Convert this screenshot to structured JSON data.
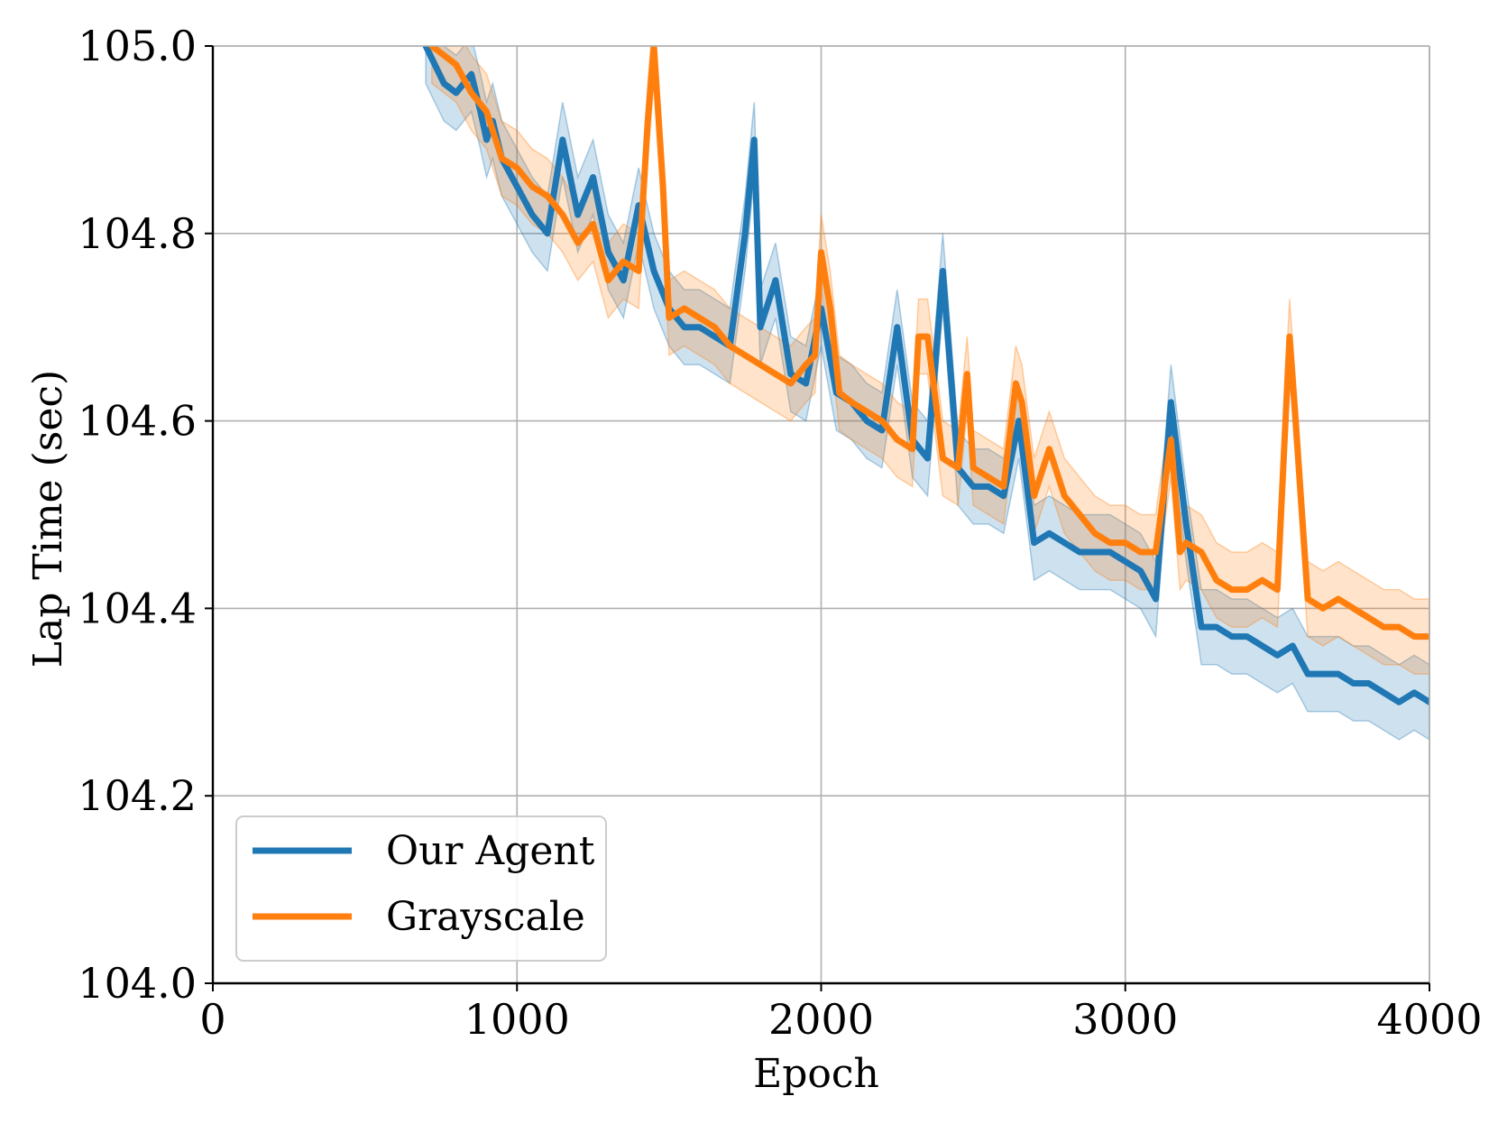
{
  "chart_data": {
    "type": "line",
    "title": "",
    "xlabel": "Epoch",
    "ylabel": "Lap Time (sec)",
    "xlim": [
      0,
      4000
    ],
    "ylim": [
      104.0,
      105.0
    ],
    "xticks": [
      0,
      1000,
      2000,
      3000,
      4000
    ],
    "xtick_labels": [
      "0",
      "1000",
      "2000",
      "3000",
      "4000"
    ],
    "yticks": [
      104.0,
      104.2,
      104.4,
      104.6,
      104.8,
      105.0
    ],
    "ytick_labels": [
      "104.0",
      "104.2",
      "104.4",
      "104.6",
      "104.8",
      "105.0"
    ],
    "grid": true,
    "legend_position": "bottom-left",
    "series": [
      {
        "name": "Our Agent",
        "color": "#1f77b4",
        "band_width": 0.04,
        "x": [
          700,
          760,
          800,
          850,
          880,
          900,
          920,
          950,
          1000,
          1050,
          1100,
          1150,
          1200,
          1250,
          1300,
          1350,
          1400,
          1450,
          1500,
          1550,
          1600,
          1650,
          1700,
          1750,
          1780,
          1800,
          1850,
          1900,
          1950,
          2000,
          2050,
          2100,
          2150,
          2200,
          2250,
          2300,
          2350,
          2400,
          2450,
          2500,
          2550,
          2600,
          2650,
          2700,
          2750,
          2800,
          2850,
          2900,
          2950,
          3000,
          3050,
          3100,
          3150,
          3200,
          3250,
          3300,
          3350,
          3400,
          3450,
          3500,
          3550,
          3600,
          3650,
          3700,
          3750,
          3800,
          3850,
          3900,
          3950,
          4000
        ],
        "y": [
          105.0,
          104.96,
          104.95,
          104.97,
          104.93,
          104.9,
          104.92,
          104.88,
          104.85,
          104.82,
          104.8,
          104.9,
          104.82,
          104.86,
          104.78,
          104.75,
          104.83,
          104.76,
          104.72,
          104.7,
          104.7,
          104.69,
          104.68,
          104.8,
          104.9,
          104.7,
          104.75,
          104.65,
          104.64,
          104.72,
          104.63,
          104.62,
          104.6,
          104.59,
          104.7,
          104.58,
          104.56,
          104.76,
          104.55,
          104.53,
          104.53,
          104.52,
          104.6,
          104.47,
          104.48,
          104.47,
          104.46,
          104.46,
          104.46,
          104.45,
          104.44,
          104.41,
          104.62,
          104.49,
          104.38,
          104.38,
          104.37,
          104.37,
          104.36,
          104.35,
          104.36,
          104.33,
          104.33,
          104.33,
          104.32,
          104.32,
          104.31,
          104.3,
          104.31,
          104.3
        ]
      },
      {
        "name": "Grayscale",
        "color": "#ff7f0e",
        "band_width": 0.04,
        "x": [
          720,
          760,
          800,
          850,
          900,
          950,
          1000,
          1050,
          1100,
          1150,
          1200,
          1250,
          1300,
          1350,
          1400,
          1430,
          1450,
          1480,
          1500,
          1550,
          1600,
          1650,
          1700,
          1750,
          1800,
          1850,
          1900,
          1950,
          1980,
          2000,
          2030,
          2060,
          2100,
          2150,
          2200,
          2250,
          2300,
          2320,
          2350,
          2400,
          2450,
          2480,
          2500,
          2550,
          2600,
          2640,
          2660,
          2700,
          2750,
          2800,
          2850,
          2900,
          2950,
          3000,
          3050,
          3100,
          3150,
          3180,
          3200,
          3250,
          3300,
          3350,
          3400,
          3450,
          3500,
          3540,
          3560,
          3600,
          3650,
          3700,
          3750,
          3800,
          3850,
          3900,
          3950,
          4000
        ],
        "y": [
          105.0,
          104.99,
          104.98,
          104.95,
          104.93,
          104.88,
          104.87,
          104.85,
          104.84,
          104.82,
          104.79,
          104.81,
          104.75,
          104.77,
          104.76,
          104.92,
          105.0,
          104.85,
          104.71,
          104.72,
          104.71,
          104.7,
          104.68,
          104.67,
          104.66,
          104.65,
          104.64,
          104.66,
          104.67,
          104.78,
          104.72,
          104.63,
          104.62,
          104.61,
          104.6,
          104.58,
          104.57,
          104.69,
          104.69,
          104.56,
          104.55,
          104.65,
          104.55,
          104.54,
          104.53,
          104.64,
          104.62,
          104.52,
          104.57,
          104.52,
          104.5,
          104.48,
          104.47,
          104.47,
          104.46,
          104.46,
          104.58,
          104.46,
          104.47,
          104.46,
          104.43,
          104.42,
          104.42,
          104.43,
          104.42,
          104.69,
          104.6,
          104.41,
          104.4,
          104.41,
          104.4,
          104.39,
          104.38,
          104.38,
          104.37,
          104.37
        ]
      }
    ]
  }
}
